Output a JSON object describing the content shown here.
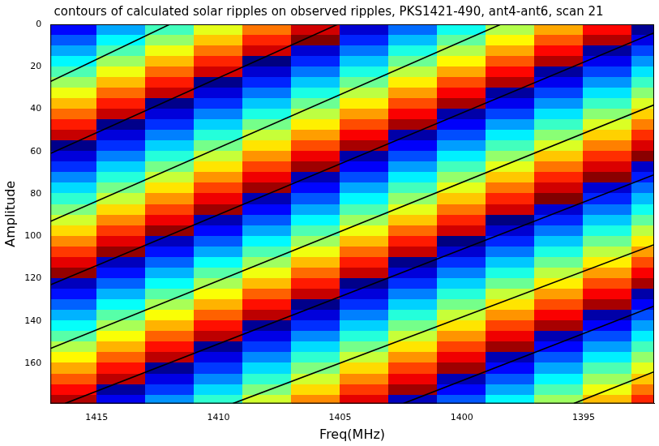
{
  "chart_data": {
    "type": "heatmap",
    "title": "contours of calculated solar ripples on observed ripples, PKS1421-490, ant4-ant6, scan 21",
    "x_label": "Freq(MHz)",
    "y_label": "Amplitude",
    "xlim": [
      1416.9,
      1392.1
    ],
    "xticks": [
      1415,
      1410,
      1405,
      1400,
      1395
    ],
    "ylim": [
      0,
      179
    ],
    "yticks": [
      0,
      20,
      40,
      60,
      80,
      100,
      120,
      140,
      160
    ],
    "grid": false,
    "color": "#000000",
    "zlim": [
      0,
      1
    ],
    "x": [
      1416,
      1414,
      1412,
      1410,
      1408,
      1406,
      1404,
      1402,
      1400,
      1398,
      1396,
      1394,
      1392
    ],
    "y": [
      2.5,
      7.5,
      12.5,
      17.5,
      22.5,
      27.5,
      32.5,
      37.5,
      42.5,
      47.5,
      52.5,
      57.5,
      62.5,
      67.5,
      72.5,
      77.5,
      82.5,
      87.5,
      92.5,
      97.5,
      102.5,
      107.5,
      112.5,
      117.5,
      122.5,
      127.5,
      132.5,
      137.5,
      142.5,
      147.5,
      152.5,
      157.5,
      162.5,
      167.5,
      172.5,
      177.5
    ],
    "cells": [
      [
        0.13,
        0.29,
        0.44,
        0.6,
        0.76,
        0.92,
        0.08,
        0.23,
        0.39,
        0.55,
        0.71,
        0.87,
        0.02
      ],
      [
        0.21,
        0.37,
        0.52,
        0.68,
        0.84,
        1,
        0.16,
        0.31,
        0.47,
        0.63,
        0.79,
        0.95,
        0.1
      ],
      [
        0.29,
        0.45,
        0.61,
        0.76,
        0.92,
        0.08,
        0.24,
        0.4,
        0.55,
        0.71,
        0.87,
        0.03,
        0.19
      ],
      [
        0.37,
        0.53,
        0.69,
        0.84,
        0,
        0.16,
        0.32,
        0.48,
        0.63,
        0.79,
        0.95,
        0.11,
        0.27
      ],
      [
        0.45,
        0.61,
        0.77,
        0.92,
        0.08,
        0.24,
        0.4,
        0.56,
        0.71,
        0.87,
        0.03,
        0.19,
        0.35
      ],
      [
        0.53,
        0.69,
        0.85,
        0.01,
        0.16,
        0.32,
        0.48,
        0.64,
        0.8,
        0.95,
        0.11,
        0.27,
        0.43
      ],
      [
        0.61,
        0.77,
        0.93,
        0.09,
        0.24,
        0.4,
        0.56,
        0.72,
        0.88,
        0.03,
        0.19,
        0.35,
        0.51
      ],
      [
        0.69,
        0.85,
        0.01,
        0.17,
        0.32,
        0.48,
        0.64,
        0.8,
        0.96,
        0.11,
        0.27,
        0.43,
        0.59
      ],
      [
        0.77,
        0.93,
        0.09,
        0.25,
        0.4,
        0.56,
        0.72,
        0.88,
        0.04,
        0.19,
        0.35,
        0.51,
        0.67
      ],
      [
        0.85,
        0.01,
        0.17,
        0.33,
        0.49,
        0.64,
        0.8,
        0.96,
        0.12,
        0.28,
        0.43,
        0.59,
        0.75
      ],
      [
        0.93,
        0.09,
        0.25,
        0.41,
        0.57,
        0.72,
        0.88,
        0.04,
        0.2,
        0.36,
        0.51,
        0.67,
        0.83
      ],
      [
        0.01,
        0.17,
        0.33,
        0.49,
        0.65,
        0.8,
        0.96,
        0.12,
        0.28,
        0.44,
        0.59,
        0.75,
        0.91
      ],
      [
        0.09,
        0.25,
        0.41,
        0.57,
        0.73,
        0.89,
        0.04,
        0.2,
        0.36,
        0.52,
        0.68,
        0.83,
        0.99
      ],
      [
        0.17,
        0.33,
        0.49,
        0.65,
        0.81,
        0.97,
        0.12,
        0.28,
        0.44,
        0.6,
        0.76,
        0.91,
        0.07
      ],
      [
        0.26,
        0.41,
        0.57,
        0.73,
        0.89,
        0.05,
        0.2,
        0.36,
        0.52,
        0.68,
        0.84,
        0.99,
        0.15
      ],
      [
        0.34,
        0.49,
        0.65,
        0.81,
        0.97,
        0.13,
        0.29,
        0.44,
        0.6,
        0.76,
        0.92,
        0.08,
        0.23
      ],
      [
        0.42,
        0.57,
        0.73,
        0.89,
        0.05,
        0.21,
        0.37,
        0.52,
        0.68,
        0.84,
        1,
        0.16,
        0.31
      ],
      [
        0.5,
        0.66,
        0.81,
        0.97,
        0.13,
        0.29,
        0.45,
        0.6,
        0.76,
        0.92,
        0.08,
        0.24,
        0.39
      ],
      [
        0.58,
        0.74,
        0.89,
        0.05,
        0.21,
        0.37,
        0.53,
        0.68,
        0.84,
        0,
        0.16,
        0.32,
        0.47
      ],
      [
        0.66,
        0.82,
        0.98,
        0.13,
        0.29,
        0.45,
        0.61,
        0.77,
        0.92,
        0.08,
        0.24,
        0.4,
        0.56
      ],
      [
        0.74,
        0.9,
        0.06,
        0.21,
        0.37,
        0.53,
        0.69,
        0.85,
        0,
        0.16,
        0.32,
        0.48,
        0.64
      ],
      [
        0.82,
        0.98,
        0.14,
        0.29,
        0.45,
        0.61,
        0.77,
        0.93,
        0.08,
        0.24,
        0.4,
        0.56,
        0.72
      ],
      [
        0.9,
        0.06,
        0.22,
        0.38,
        0.53,
        0.69,
        0.85,
        0.01,
        0.17,
        0.32,
        0.48,
        0.64,
        0.8
      ],
      [
        0.98,
        0.14,
        0.3,
        0.46,
        0.61,
        0.77,
        0.93,
        0.09,
        0.25,
        0.4,
        0.56,
        0.72,
        0.88
      ],
      [
        0.06,
        0.22,
        0.38,
        0.54,
        0.69,
        0.85,
        0.01,
        0.17,
        0.33,
        0.48,
        0.64,
        0.8,
        0.96
      ],
      [
        0.14,
        0.3,
        0.46,
        0.62,
        0.78,
        0.93,
        0.09,
        0.25,
        0.41,
        0.57,
        0.72,
        0.88,
        0.04
      ],
      [
        0.22,
        0.38,
        0.54,
        0.7,
        0.86,
        0.01,
        0.17,
        0.33,
        0.49,
        0.65,
        0.8,
        0.96,
        0.12
      ],
      [
        0.3,
        0.46,
        0.62,
        0.78,
        0.94,
        0.09,
        0.25,
        0.41,
        0.57,
        0.73,
        0.88,
        0.04,
        0.2
      ],
      [
        0.38,
        0.54,
        0.7,
        0.86,
        0.02,
        0.17,
        0.33,
        0.49,
        0.65,
        0.81,
        0.96,
        0.12,
        0.28
      ],
      [
        0.46,
        0.62,
        0.78,
        0.94,
        0.1,
        0.26,
        0.41,
        0.57,
        0.73,
        0.89,
        0.05,
        0.2,
        0.36
      ],
      [
        0.55,
        0.7,
        0.86,
        0.02,
        0.18,
        0.34,
        0.49,
        0.65,
        0.81,
        0.97,
        0.13,
        0.28,
        0.44
      ],
      [
        0.63,
        0.78,
        0.94,
        0.1,
        0.26,
        0.42,
        0.57,
        0.73,
        0.89,
        0.05,
        0.21,
        0.36,
        0.52
      ],
      [
        0.71,
        0.86,
        0.02,
        0.18,
        0.34,
        0.5,
        0.66,
        0.81,
        0.97,
        0.13,
        0.29,
        0.45,
        0.6
      ],
      [
        0.79,
        0.94,
        0.1,
        0.26,
        0.42,
        0.58,
        0.74,
        0.89,
        0.05,
        0.21,
        0.37,
        0.53,
        0.68
      ],
      [
        0.87,
        0.03,
        0.18,
        0.34,
        0.5,
        0.66,
        0.82,
        0.97,
        0.13,
        0.29,
        0.45,
        0.61,
        0.76
      ],
      [
        0.95,
        0.11,
        0.27,
        0.42,
        0.58,
        0.74,
        0.9,
        0.06,
        0.21,
        0.37,
        0.53,
        0.69,
        0.84
      ]
    ],
    "contours": [
      [
        [
          1416.9,
          27
        ],
        [
          1412.0,
          0
        ]
      ],
      [
        [
          1416.9,
          61
        ],
        [
          1405.1,
          0
        ]
      ],
      [
        [
          1416.9,
          93
        ],
        [
          1398.4,
          0
        ]
      ],
      [
        [
          1416.9,
          123
        ],
        [
          1392.1,
          4
        ]
      ],
      [
        [
          1416.9,
          153
        ],
        [
          1392.1,
          38
        ]
      ],
      [
        [
          1416.3,
          179
        ],
        [
          1392.1,
          71
        ]
      ],
      [
        [
          1409.4,
          179
        ],
        [
          1392.1,
          104
        ]
      ],
      [
        [
          1402.4,
          179
        ],
        [
          1392.1,
          133
        ]
      ],
      [
        [
          1395.4,
          179
        ],
        [
          1392.1,
          164
        ]
      ]
    ]
  }
}
